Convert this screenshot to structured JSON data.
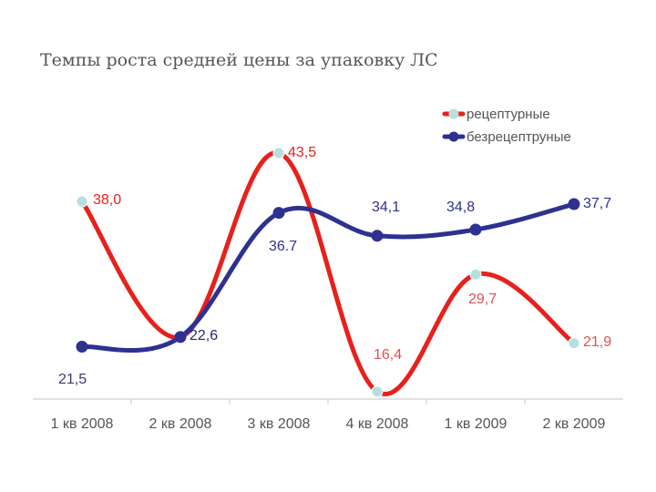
{
  "title": "Темпы роста средней цены за упаковку ЛС",
  "chart_data": {
    "type": "line",
    "categories": [
      "1 кв 2008",
      "2 кв 2008",
      "3 кв 2008",
      "4 кв 2008",
      "1 кв 2009",
      "2 кв 2009"
    ],
    "series": [
      {
        "name": "рецептурные",
        "values": [
          38.0,
          22.6,
          43.5,
          16.4,
          29.7,
          21.9
        ],
        "labels": [
          "38,0",
          "",
          "43,5",
          "16,4",
          "29,7",
          "21,9"
        ],
        "color": "#e8201c",
        "marker_color": "#b8dfe0"
      },
      {
        "name": "безрецептруные",
        "values": [
          21.5,
          22.6,
          36.7,
          34.1,
          34.8,
          37.7
        ],
        "labels": [
          "21,5",
          "22,6",
          "36.7",
          "34,1",
          "34,8",
          "37,7"
        ],
        "color": "#2e3190",
        "marker_color": "#2e3190"
      }
    ],
    "smooth": true,
    "grid": false,
    "legend_position": "top-right"
  }
}
